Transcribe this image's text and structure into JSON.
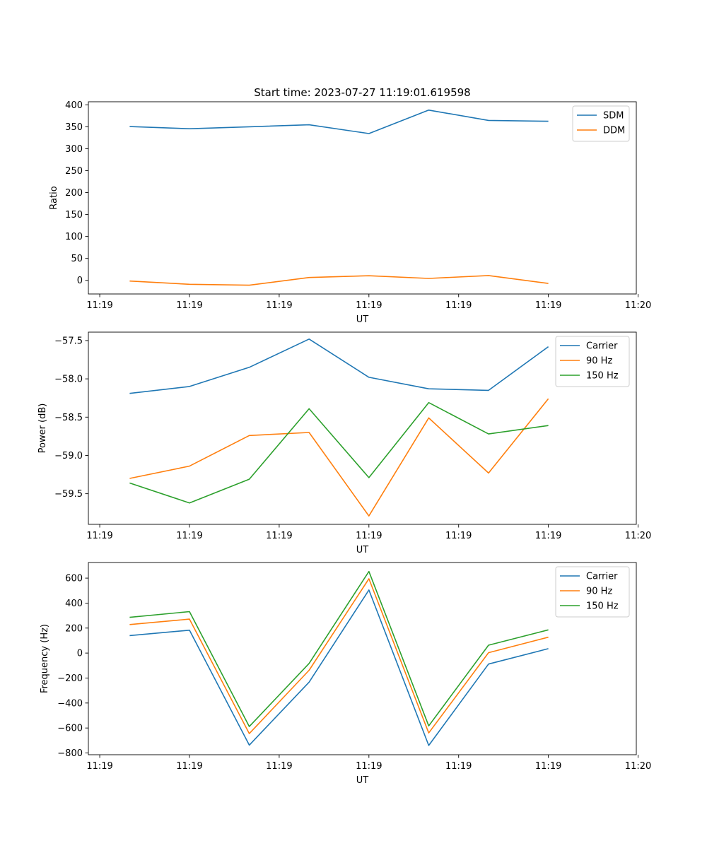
{
  "figure": {
    "title": "Start time: 2023-07-27 11:19:01.619598"
  },
  "chart_data": [
    {
      "type": "line",
      "title": "Start time: 2023-07-27 11:19:01.619598",
      "xlabel": "UT",
      "ylabel": "Ratio",
      "x": [
        1,
        2,
        3,
        4,
        5,
        6,
        7,
        8
      ],
      "xlim": [
        0.31,
        9.47
      ],
      "xticks": [
        0.5,
        2,
        3.5,
        5,
        6.5,
        8,
        9.5
      ],
      "xticklabels": [
        "11:19",
        "11:19",
        "11:19",
        "11:19",
        "11:19",
        "11:19",
        "11:20"
      ],
      "ylim": [
        -31,
        407
      ],
      "yticks": [
        0,
        50,
        100,
        150,
        200,
        250,
        300,
        350,
        400
      ],
      "yticklabels": [
        "0",
        "50",
        "100",
        "150",
        "200",
        "250",
        "300",
        "350",
        "400"
      ],
      "legend": "top-right",
      "series": [
        {
          "name": "SDM",
          "color": "#1f77b4",
          "values": [
            350.5,
            345.5,
            350.0,
            354.5,
            334.5,
            388.0,
            364.5,
            362.5
          ]
        },
        {
          "name": "DDM",
          "color": "#ff7f0e",
          "values": [
            -1.5,
            -9.0,
            -11.0,
            6.5,
            10.5,
            4.5,
            11.0,
            -7.0
          ]
        }
      ]
    },
    {
      "type": "line",
      "xlabel": "UT",
      "ylabel": "Power (dB)",
      "x": [
        1,
        2,
        3,
        4,
        5,
        6,
        7,
        8
      ],
      "xlim": [
        0.31,
        9.47
      ],
      "xticks": [
        0.5,
        2,
        3.5,
        5,
        6.5,
        8,
        9.5
      ],
      "xticklabels": [
        "11:19",
        "11:19",
        "11:19",
        "11:19",
        "11:19",
        "11:19",
        "11:20"
      ],
      "ylim": [
        -59.9,
        -57.39
      ],
      "yticks": [
        -59.5,
        -59.0,
        -58.5,
        -58.0,
        -57.5
      ],
      "yticklabels": [
        "−59.5",
        "−59.0",
        "−58.5",
        "−58.0",
        "−57.5"
      ],
      "legend": "top-right",
      "series": [
        {
          "name": "Carrier",
          "color": "#1f77b4",
          "values": [
            -58.19,
            -58.1,
            -57.85,
            -57.48,
            -57.98,
            -58.13,
            -58.15,
            -57.58
          ]
        },
        {
          "name": "90 Hz",
          "color": "#ff7f0e",
          "values": [
            -59.3,
            -59.14,
            -58.74,
            -58.7,
            -59.79,
            -58.51,
            -59.23,
            -58.26
          ]
        },
        {
          "name": "150 Hz",
          "color": "#2ca02c",
          "values": [
            -59.36,
            -59.62,
            -59.31,
            -58.39,
            -59.29,
            -58.31,
            -58.72,
            -58.61
          ]
        }
      ]
    },
    {
      "type": "line",
      "xlabel": "UT",
      "ylabel": "Frequency (Hz)",
      "x": [
        1,
        2,
        3,
        4,
        5,
        6,
        7,
        8
      ],
      "xlim": [
        0.31,
        9.47
      ],
      "xticks": [
        0.5,
        2,
        3.5,
        5,
        6.5,
        8,
        9.5
      ],
      "xticklabels": [
        "11:19",
        "11:19",
        "11:19",
        "11:19",
        "11:19",
        "11:19",
        "11:20"
      ],
      "ylim": [
        -814,
        725
      ],
      "yticks": [
        -800,
        -600,
        -400,
        -200,
        0,
        200,
        400,
        600
      ],
      "yticklabels": [
        "−800",
        "−600",
        "−400",
        "−200",
        "0",
        "200",
        "400",
        "600"
      ],
      "legend": "top-right",
      "series": [
        {
          "name": "Carrier",
          "color": "#1f77b4",
          "values": [
            140,
            183,
            -737,
            -233,
            505,
            -740,
            -88,
            35
          ]
        },
        {
          "name": "90 Hz",
          "color": "#ff7f0e",
          "values": [
            228,
            272,
            -645,
            -138,
            595,
            -640,
            3,
            127
          ]
        },
        {
          "name": "150 Hz",
          "color": "#2ca02c",
          "values": [
            286,
            332,
            -588,
            -83,
            653,
            -583,
            63,
            186
          ]
        }
      ]
    }
  ]
}
